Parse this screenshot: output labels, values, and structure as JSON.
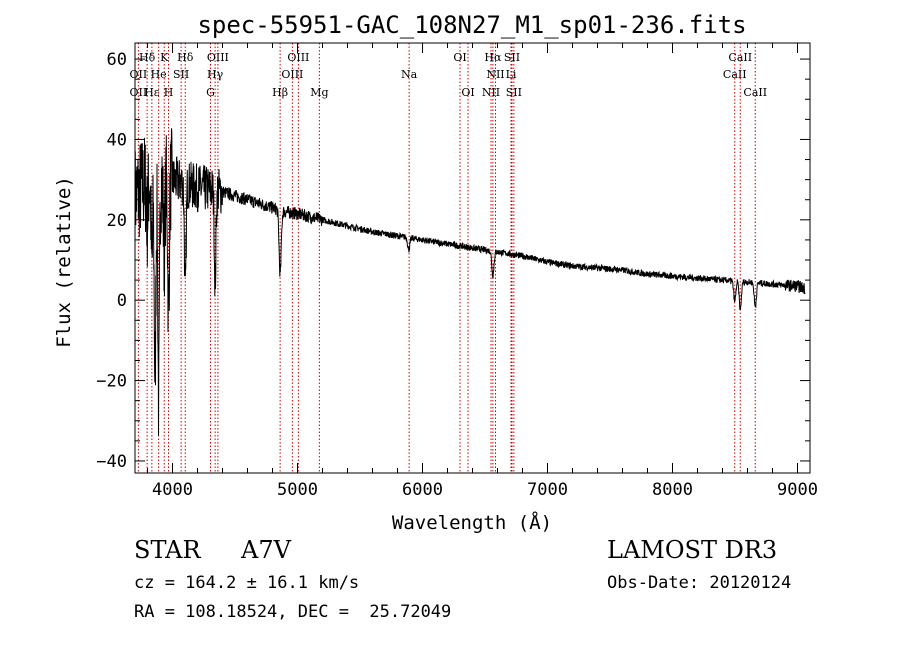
{
  "chart_data": {
    "type": "line",
    "title": "spec-55951-GAC_108N27_M1_sp01-236.fits",
    "xlabel": "Wavelength (Å)",
    "ylabel": "Flux (relative)",
    "xlim": [
      3700,
      9100
    ],
    "ylim": [
      -43,
      64
    ],
    "x_ticks": [
      4000,
      5000,
      6000,
      7000,
      8000,
      9000
    ],
    "y_ticks": [
      -40,
      -20,
      0,
      20,
      40,
      60
    ],
    "series": [
      {
        "name": "flux",
        "x": [
          3700,
          3800,
          3900,
          4000,
          4100,
          4200,
          4300,
          4400,
          4500,
          4600,
          4700,
          4800,
          4900,
          5000,
          5200,
          5400,
          5600,
          5800,
          6000,
          6200,
          6400,
          6600,
          6800,
          7000,
          7200,
          7400,
          7600,
          7800,
          8000,
          8200,
          8400,
          8600,
          8800,
          9000,
          9060
        ],
        "y": [
          26,
          30,
          30,
          30,
          29,
          28,
          27.5,
          27,
          26,
          25,
          24,
          23,
          22,
          21.5,
          20,
          18.5,
          17,
          16,
          15,
          14,
          13,
          12,
          11,
          9.5,
          8.5,
          8,
          7.5,
          6.5,
          6,
          5.5,
          5,
          4.5,
          4,
          3.5,
          3
        ]
      }
    ],
    "absorption_features": [
      {
        "x": 3798,
        "depth": 10
      },
      {
        "x": 3835,
        "depth": 22
      },
      {
        "x": 3860,
        "depth": 50
      },
      {
        "x": 3889,
        "depth": 55
      },
      {
        "x": 3933,
        "depth": 18
      },
      {
        "x": 3968,
        "depth": 32
      },
      {
        "x": 4102,
        "depth": 28
      },
      {
        "x": 4341,
        "depth": 23
      },
      {
        "x": 4861,
        "depth": 16
      },
      {
        "x": 5890,
        "depth": 3
      },
      {
        "x": 6563,
        "depth": 6
      },
      {
        "x": 8498,
        "depth": 5
      },
      {
        "x": 8542,
        "depth": 7
      },
      {
        "x": 8662,
        "depth": 6
      }
    ],
    "lines": [
      {
        "label": "Hδ",
        "x": 3797,
        "row": 0
      },
      {
        "label": "K",
        "x": 3934,
        "row": 0
      },
      {
        "label": "Hδ",
        "x": 4102,
        "row": 0
      },
      {
        "label": "OIII",
        "x": 4363,
        "row": 0
      },
      {
        "label": "OIII",
        "x": 5007,
        "row": 0
      },
      {
        "label": "OI",
        "x": 6300,
        "row": 0
      },
      {
        "label": "Hα",
        "x": 6563,
        "row": 0
      },
      {
        "label": "SII",
        "x": 6716,
        "row": 0
      },
      {
        "label": "CaII",
        "x": 8542,
        "row": 0
      },
      {
        "label": "OII",
        "x": 3727,
        "row": 1
      },
      {
        "label": "He",
        "x": 3889,
        "row": 1
      },
      {
        "label": "SII",
        "x": 4069,
        "row": 1
      },
      {
        "label": "Hγ",
        "x": 4341,
        "row": 1
      },
      {
        "label": "OIII",
        "x": 4959,
        "row": 1
      },
      {
        "label": "Na",
        "x": 5893,
        "row": 1
      },
      {
        "label": "NII",
        "x": 6584,
        "row": 1
      },
      {
        "label": "Li",
        "x": 6708,
        "row": 1
      },
      {
        "label": "CaII",
        "x": 8498,
        "row": 1
      },
      {
        "label": "OII",
        "x": 3727,
        "row": 2
      },
      {
        "label": "Hε",
        "x": 3835,
        "row": 2
      },
      {
        "label": "H",
        "x": 3968,
        "row": 2
      },
      {
        "label": "G",
        "x": 4304,
        "row": 2
      },
      {
        "label": "Hβ",
        "x": 4861,
        "row": 2
      },
      {
        "label": "Mg",
        "x": 5175,
        "row": 2
      },
      {
        "label": "OI",
        "x": 6364,
        "row": 2
      },
      {
        "label": "NII",
        "x": 6548,
        "row": 2
      },
      {
        "label": "SII",
        "x": 6731,
        "row": 2
      },
      {
        "label": "CaII",
        "x": 8662,
        "row": 2
      }
    ],
    "marker_lines_x": [
      3727,
      3797,
      3835,
      3889,
      3934,
      3968,
      4069,
      4102,
      4304,
      4341,
      4363,
      4861,
      4959,
      5007,
      5175,
      5893,
      6300,
      6364,
      6548,
      6563,
      6584,
      6708,
      6716,
      6731,
      8498,
      8542,
      8662
    ],
    "colors": {
      "spectrum": "#000000",
      "marker": "#cc0000",
      "axis": "#000000",
      "background": "#ffffff"
    }
  },
  "info": {
    "object_class": "STAR",
    "subclass": "A7V",
    "survey": "LAMOST DR3",
    "redshift": "cz = 164.2 ± 16.1 km/s",
    "obs_date": "Obs-Date: 20120124",
    "coords": "RA = 108.18524, DEC =  25.72049"
  }
}
